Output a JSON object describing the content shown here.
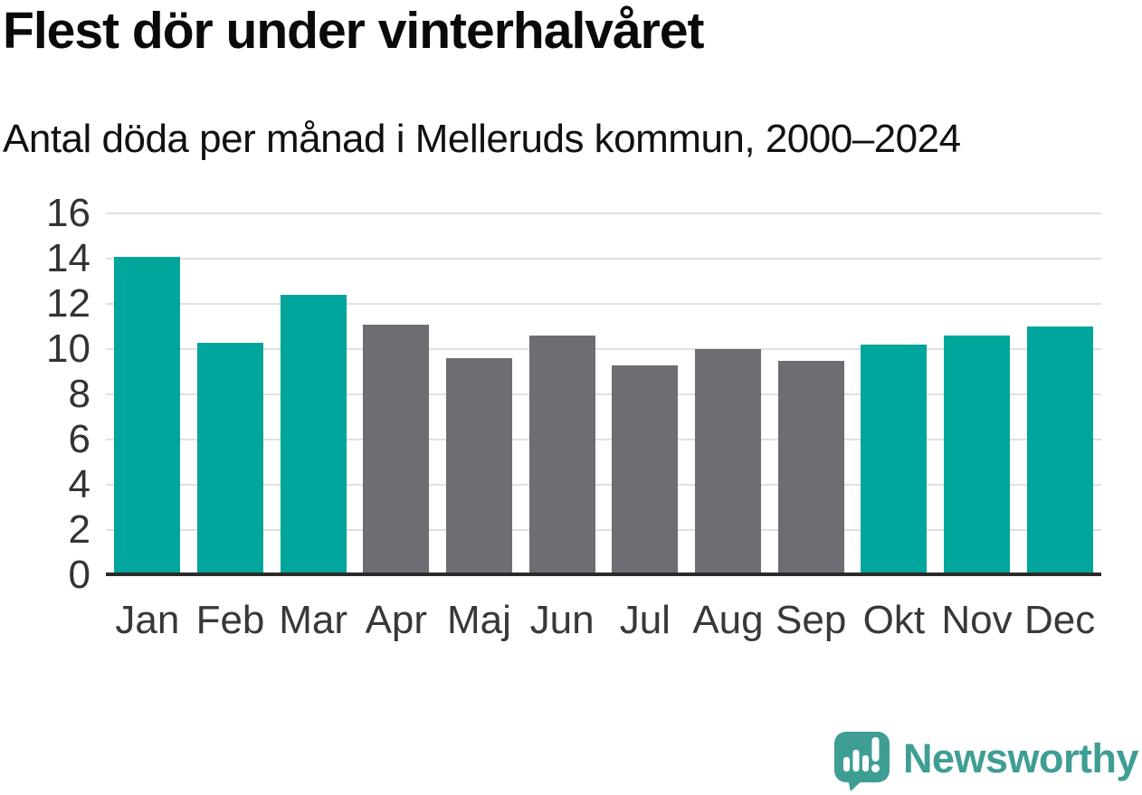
{
  "header": {
    "title": "Flest dör under vinterhalvåret",
    "subtitle": "Antal döda per månad i Melleruds kommun, 2000–2024"
  },
  "chart_data": {
    "type": "bar",
    "title": "Flest dör under vinterhalvåret",
    "subtitle": "Antal döda per månad i Melleruds kommun, 2000–2024",
    "categories": [
      "Jan",
      "Feb",
      "Mar",
      "Apr",
      "Maj",
      "Jun",
      "Jul",
      "Aug",
      "Sep",
      "Okt",
      "Nov",
      "Dec"
    ],
    "values": [
      14.1,
      10.3,
      12.4,
      11.1,
      9.6,
      10.6,
      9.3,
      10.0,
      9.5,
      10.2,
      10.6,
      11.0
    ],
    "bar_colors": [
      "#00a59b",
      "#00a59b",
      "#00a59b",
      "#6e6d73",
      "#6e6d73",
      "#6e6d73",
      "#6e6d73",
      "#6e6d73",
      "#6e6d73",
      "#00a59b",
      "#00a59b",
      "#00a59b"
    ],
    "xlabel": "",
    "ylabel": "",
    "ylim": [
      0,
      16
    ],
    "yticks": [
      0,
      2,
      4,
      6,
      8,
      10,
      12,
      14,
      16
    ],
    "grid": true,
    "legend_position": "none"
  },
  "footer": {
    "brand": "Newsworthy"
  },
  "colors": {
    "winter_teal": "#00a59b",
    "summer_gray": "#6e6d73",
    "gridline": "#e0e0e0",
    "axis_line": "#2b2b2b",
    "title_text": "#0a0a0a",
    "axis_text": "#333333",
    "logo_teal": "#3f9e94",
    "background": "#ffffff"
  },
  "icons": {
    "logo": "speech-bubble-bar-chart-exclamation-icon"
  }
}
